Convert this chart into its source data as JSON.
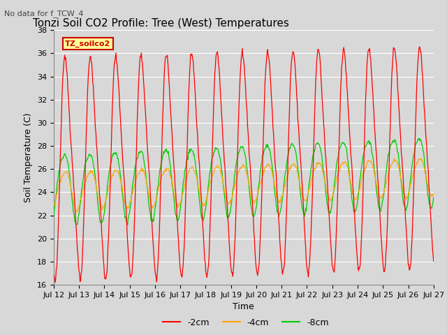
{
  "title": "Tonzi Soil CO2 Profile: Tree (West) Temperatures",
  "subtitle": "No data for f_TCW_4",
  "xlabel": "Time",
  "ylabel": "Soil Temperature (C)",
  "ylim": [
    16,
    38
  ],
  "yticks": [
    16,
    18,
    20,
    22,
    24,
    26,
    28,
    30,
    32,
    34,
    36,
    38
  ],
  "xtick_labels": [
    "Jul 12",
    "Jul 13",
    "Jul 14",
    "Jul 15",
    "Jul 16",
    "Jul 17",
    "Jul 18",
    "Jul 19",
    "Jul 20",
    "Jul 21",
    "Jul 22",
    "Jul 23",
    "Jul 24",
    "Jul 25",
    "Jul 26",
    "Jul 27"
  ],
  "legend_labels": [
    "-2cm",
    "-4cm",
    "-8cm"
  ],
  "line_colors": [
    "#ff0000",
    "#ffa500",
    "#00cc00"
  ],
  "background_color": "#d8d8d8",
  "plot_bg_color": "#d8d8d8",
  "legend_box_facecolor": "#ffff99",
  "legend_box_edgecolor": "#cc0000",
  "legend_text_color": "#cc0000",
  "title_fontsize": 11,
  "axis_fontsize": 9,
  "tick_fontsize": 8,
  "days": 15,
  "n_points": 720,
  "red_base": 26.0,
  "red_amplitude": 9.0,
  "orange_base": 24.2,
  "orange_amplitude": 1.6,
  "green_base": 24.5,
  "green_amplitude": 3.0
}
